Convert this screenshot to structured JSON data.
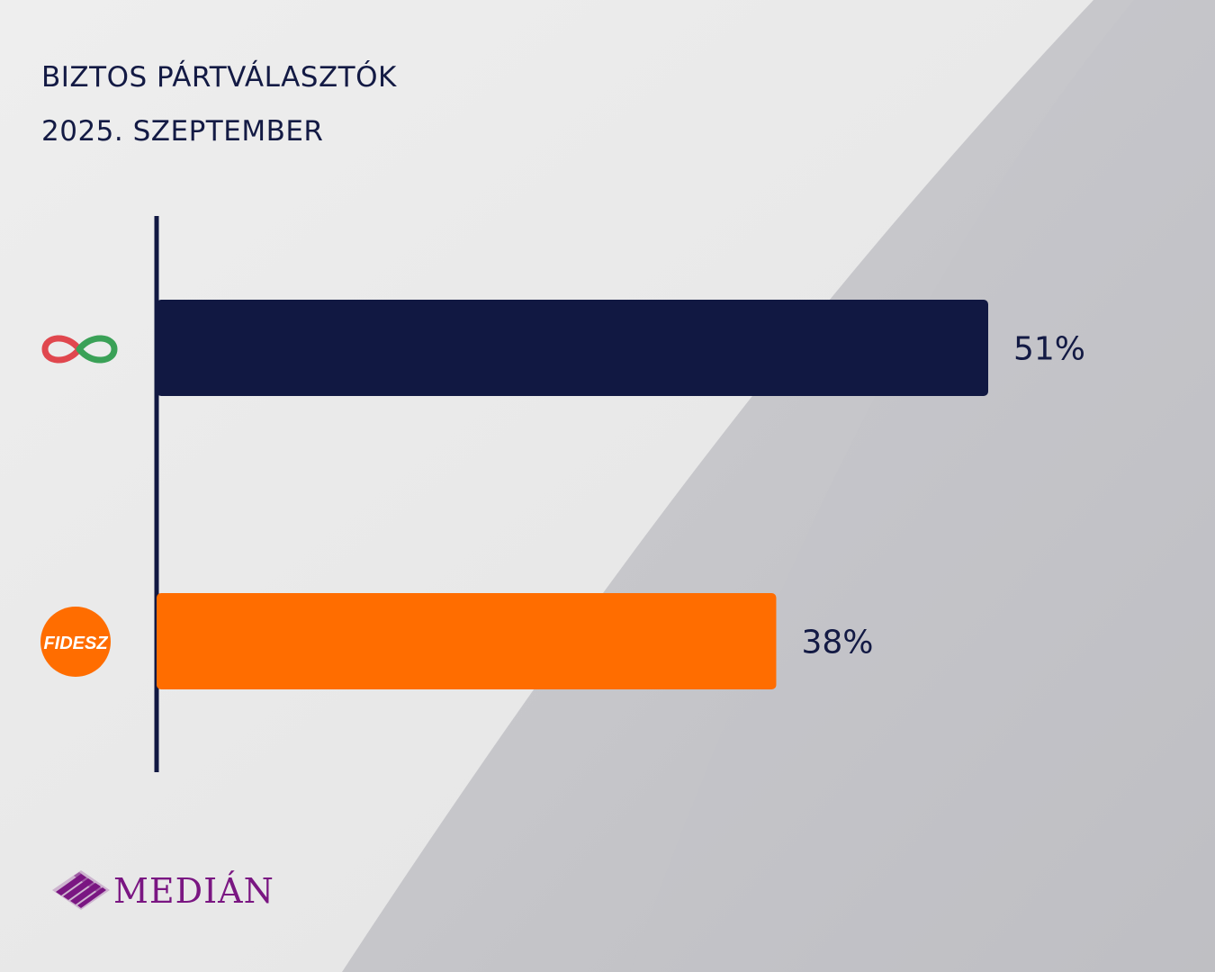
{
  "header": {
    "title_line1": "BIZTOS PÁRTVÁLASZTÓK",
    "title_line2": "2025. SZEPTEMBER"
  },
  "chart_data": {
    "type": "bar",
    "orientation": "horizontal",
    "title": "BIZTOS PÁRTVÁLASZTÓK",
    "subtitle": "2025. SZEPTEMBER",
    "categories": [
      {
        "logo": "infinity-party-logo",
        "color": "#111842"
      },
      {
        "logo": "fidesz-party-logo",
        "logo_text": "FIDESZ",
        "color": "#ff6d00"
      }
    ],
    "values": [
      51,
      38
    ],
    "value_labels": [
      "51%",
      "38%"
    ],
    "unit": "%",
    "xlim": [
      0,
      55
    ],
    "grid": false,
    "legend": "none"
  },
  "footer": {
    "brand": "MEDIÁN",
    "brand_color": "#7a1682"
  }
}
